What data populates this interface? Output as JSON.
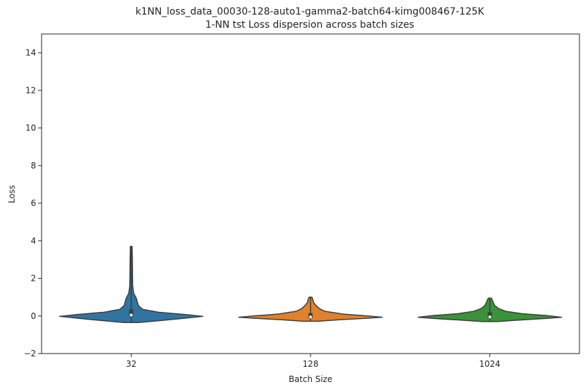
{
  "chart_data": {
    "type": "violin",
    "title_line1": "k1NN_loss_data_00030-128-auto1-gamma2-batch64-kimg008467-125K",
    "title_line2": "1-NN tst Loss dispersion across batch sizes",
    "xlabel": "Batch Size",
    "ylabel": "Loss",
    "ylim": [
      -2,
      15
    ],
    "yticks": [
      -2,
      0,
      2,
      4,
      6,
      8,
      10,
      12,
      14
    ],
    "categories": [
      "32",
      "128",
      "1024"
    ],
    "grid": false,
    "series": [
      {
        "category": "32",
        "color": "#3274a1",
        "min": -0.35,
        "max": 3.7,
        "q1": -0.02,
        "median": 0.05,
        "q3": 0.35,
        "profile": [
          [
            -0.35,
            0.1
          ],
          [
            -0.25,
            0.4
          ],
          [
            -0.12,
            0.75
          ],
          [
            -0.02,
            1.0
          ],
          [
            0.08,
            0.75
          ],
          [
            0.2,
            0.38
          ],
          [
            0.35,
            0.16
          ],
          [
            0.55,
            0.1
          ],
          [
            0.75,
            0.085
          ],
          [
            0.95,
            0.07
          ],
          [
            1.2,
            0.035
          ],
          [
            1.6,
            0.02
          ],
          [
            2.2,
            0.018
          ],
          [
            3.0,
            0.016
          ],
          [
            3.7,
            0.012
          ]
        ]
      },
      {
        "category": "128",
        "color": "#e1812c",
        "min": -0.28,
        "max": 1.0,
        "q1": -0.1,
        "median": -0.05,
        "q3": 0.15,
        "profile": [
          [
            -0.28,
            0.1
          ],
          [
            -0.2,
            0.4
          ],
          [
            -0.12,
            0.8
          ],
          [
            -0.07,
            1.0
          ],
          [
            0.0,
            0.8
          ],
          [
            0.1,
            0.45
          ],
          [
            0.25,
            0.2
          ],
          [
            0.4,
            0.12
          ],
          [
            0.55,
            0.08
          ],
          [
            0.7,
            0.045
          ],
          [
            0.85,
            0.035
          ],
          [
            1.0,
            0.02
          ]
        ]
      },
      {
        "category": "1024",
        "color": "#3a923a",
        "min": -0.3,
        "max": 0.95,
        "q1": -0.1,
        "median": -0.05,
        "q3": 0.2,
        "profile": [
          [
            -0.3,
            0.1
          ],
          [
            -0.22,
            0.4
          ],
          [
            -0.13,
            0.8
          ],
          [
            -0.07,
            1.0
          ],
          [
            0.02,
            0.8
          ],
          [
            0.12,
            0.45
          ],
          [
            0.25,
            0.22
          ],
          [
            0.4,
            0.12
          ],
          [
            0.55,
            0.07
          ],
          [
            0.7,
            0.05
          ],
          [
            0.85,
            0.035
          ],
          [
            0.95,
            0.02
          ]
        ]
      }
    ]
  }
}
